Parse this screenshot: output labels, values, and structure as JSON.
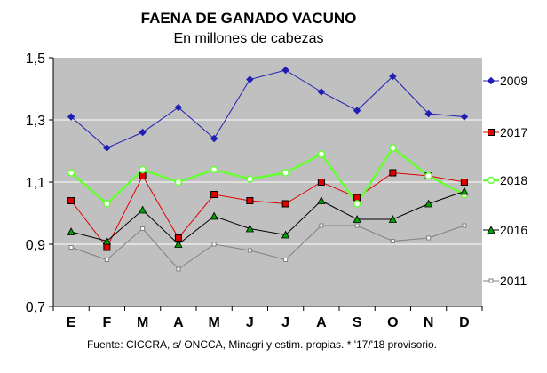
{
  "chart_data": {
    "type": "line",
    "title": "FAENA DE GANADO VACUNO",
    "subtitle": "En millones de cabezas",
    "xlabel": "",
    "ylabel": "",
    "categories": [
      "E",
      "F",
      "M",
      "A",
      "M",
      "J",
      "J",
      "A",
      "S",
      "O",
      "N",
      "D"
    ],
    "ylim": [
      0.7,
      1.5
    ],
    "yticks": [
      0.7,
      0.9,
      1.1,
      1.3,
      1.5
    ],
    "ytick_labels": [
      "0,7",
      "0,9",
      "1,1",
      "1,3",
      "1,5"
    ],
    "grid": true,
    "legend_position": "right",
    "series": [
      {
        "name": "2009",
        "color": "#1f1fb4",
        "marker": "diamond",
        "values": [
          1.31,
          1.21,
          1.26,
          1.34,
          1.24,
          1.43,
          1.46,
          1.39,
          1.33,
          1.44,
          1.32,
          1.31
        ]
      },
      {
        "name": "2017",
        "color": "#e00000",
        "marker": "square",
        "values": [
          1.04,
          0.89,
          1.12,
          0.92,
          1.06,
          1.04,
          1.03,
          1.1,
          1.05,
          1.13,
          1.12,
          1.1
        ]
      },
      {
        "name": "2018",
        "color": "#66ff33",
        "marker": "circle",
        "values": [
          1.13,
          1.03,
          1.14,
          1.1,
          1.14,
          1.11,
          1.13,
          1.19,
          1.03,
          1.21,
          1.12,
          1.06
        ]
      },
      {
        "name": "2016",
        "color": "#000000",
        "marker": "triangle",
        "values": [
          0.94,
          0.91,
          1.01,
          0.9,
          0.99,
          0.95,
          0.93,
          1.04,
          0.98,
          0.98,
          1.03,
          1.07
        ]
      },
      {
        "name": "2011",
        "color": "#808080",
        "marker": "smallsquare",
        "values": [
          0.89,
          0.85,
          0.95,
          0.82,
          0.9,
          0.88,
          0.85,
          0.96,
          0.96,
          0.91,
          0.92,
          0.96
        ]
      }
    ]
  },
  "source": "Fuente: CICCRA, s/ ONCCA, Minagri y estim. propias. * '17/'18 provisorio."
}
